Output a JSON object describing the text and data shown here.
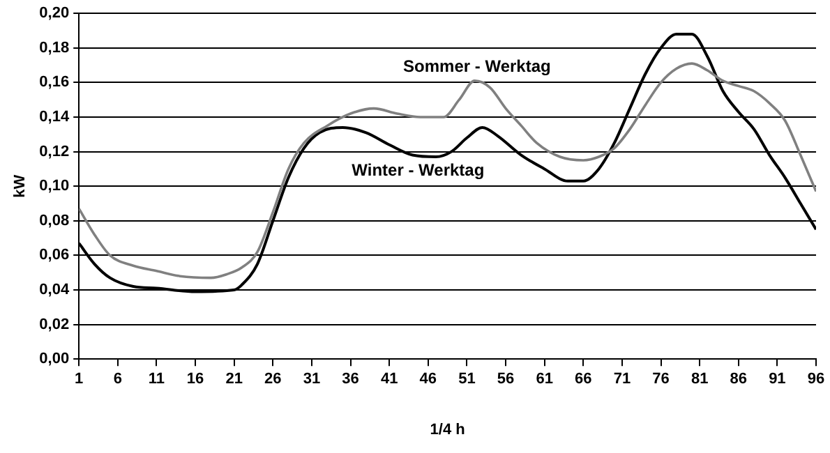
{
  "chart_data": {
    "type": "line",
    "xlabel": "1/4 h",
    "ylabel": "kW",
    "xlim": [
      1,
      96
    ],
    "xticks": [
      1,
      6,
      11,
      16,
      21,
      26,
      31,
      36,
      41,
      46,
      51,
      56,
      61,
      66,
      71,
      76,
      81,
      86,
      91,
      96
    ],
    "ylim": [
      0,
      0.2
    ],
    "yticks": [
      {
        "value": 0,
        "label": "0,00"
      },
      {
        "value": 0.02,
        "label": "0,02"
      },
      {
        "value": 0.04,
        "label": "0,04"
      },
      {
        "value": 0.06,
        "label": "0,06"
      },
      {
        "value": 0.08,
        "label": "0,08"
      },
      {
        "value": 0.1,
        "label": "0,10"
      },
      {
        "value": 0.12,
        "label": "0,12"
      },
      {
        "value": 0.14,
        "label": "0,14"
      },
      {
        "value": 0.16,
        "label": "0,16"
      },
      {
        "value": 0.18,
        "label": "0,18"
      },
      {
        "value": 0.2,
        "label": "0,20"
      }
    ],
    "grid": "y",
    "legend": false,
    "marker": "none",
    "line_style": "solid",
    "series": [
      {
        "name": "Sommer - Werktag",
        "color": "#808080",
        "x": [
          1,
          3,
          5,
          8,
          11,
          14,
          18,
          20,
          22,
          24,
          26,
          28,
          30,
          33,
          36,
          39,
          42,
          45,
          48,
          50,
          52,
          54,
          56,
          58,
          60,
          63,
          66,
          68,
          70,
          72,
          74,
          76,
          78,
          80,
          82,
          84,
          86,
          88,
          90,
          92,
          94,
          96
        ],
        "values": [
          0.087,
          0.072,
          0.06,
          0.054,
          0.051,
          0.048,
          0.047,
          0.049,
          0.053,
          0.062,
          0.085,
          0.11,
          0.125,
          0.135,
          0.142,
          0.145,
          0.142,
          0.14,
          0.14,
          0.15,
          0.161,
          0.157,
          0.145,
          0.135,
          0.125,
          0.117,
          0.115,
          0.117,
          0.122,
          0.133,
          0.147,
          0.16,
          0.168,
          0.171,
          0.167,
          0.161,
          0.158,
          0.155,
          0.148,
          0.138,
          0.118,
          0.097
        ]
      },
      {
        "name": "Winter - Werktag",
        "color": "#000000",
        "x": [
          1,
          3,
          5,
          8,
          11,
          16,
          21,
          22,
          24,
          26,
          28,
          30,
          32,
          35,
          38,
          41,
          44,
          47,
          49,
          51,
          53,
          55,
          58,
          61,
          64,
          66,
          68,
          70,
          72,
          74,
          76,
          78,
          80,
          82,
          84,
          86,
          88,
          90,
          92,
          94,
          96
        ],
        "values": [
          0.067,
          0.055,
          0.047,
          0.042,
          0.041,
          0.039,
          0.04,
          0.043,
          0.055,
          0.08,
          0.105,
          0.122,
          0.131,
          0.134,
          0.131,
          0.124,
          0.118,
          0.117,
          0.12,
          0.128,
          0.134,
          0.129,
          0.118,
          0.11,
          0.103,
          0.103,
          0.11,
          0.125,
          0.145,
          0.165,
          0.18,
          0.188,
          0.188,
          0.175,
          0.155,
          0.143,
          0.133,
          0.118,
          0.105,
          0.09,
          0.075
        ]
      }
    ]
  }
}
